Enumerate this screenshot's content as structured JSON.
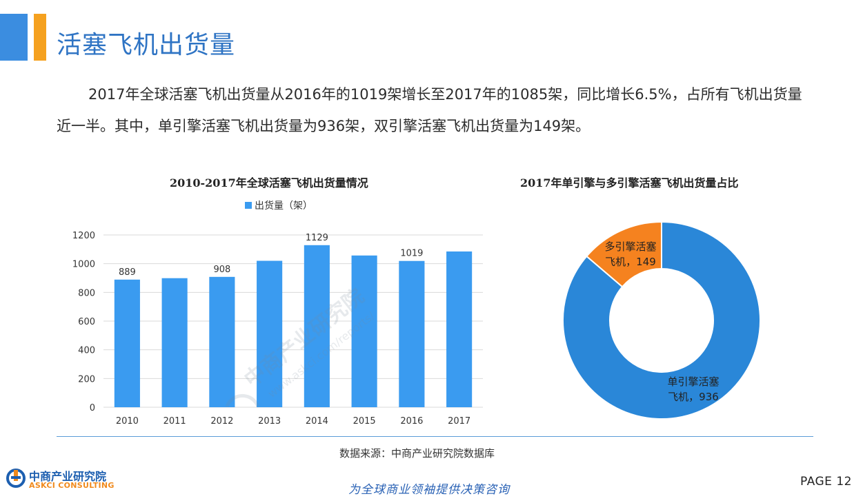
{
  "page_title": "活塞飞机出货量",
  "intro_text": "2017年全球活塞飞机出货量从2016年的1019架增长至2017年的1085架，同比增长6.5%，占所有飞机出货量近一半。其中，单引擎活塞飞机出货量为936架，双引擎活塞飞机出货量为149架。",
  "colors": {
    "accent_blue": "#3b8de0",
    "accent_orange": "#f5a11f",
    "bar": "#3a9bf0",
    "donut_single": "#2a87d8",
    "donut_multi": "#f5821f"
  },
  "chart_data": [
    {
      "type": "bar",
      "title": "2010-2017年全球活塞飞机出货量情况",
      "categories": [
        "2010",
        "2011",
        "2012",
        "2013",
        "2014",
        "2015",
        "2016",
        "2017"
      ],
      "series": [
        {
          "name": "出货量（架）",
          "values": [
            889,
            899,
            908,
            1020,
            1129,
            1057,
            1019,
            1085
          ]
        }
      ],
      "data_labels": [
        "889",
        "",
        "908",
        "",
        "1129",
        "",
        "1019",
        ""
      ],
      "ylim": [
        0,
        1200
      ],
      "yticks": [
        "0",
        "200",
        "400",
        "600",
        "800",
        "1000",
        "1200"
      ],
      "grid": true,
      "legend": "top"
    },
    {
      "type": "pie",
      "title": "2017年单引擎与多引擎活塞飞机出货量占比",
      "slices": [
        {
          "name": "多引擎活塞飞机",
          "value": 149,
          "label_line1": "多引擎活塞",
          "label_line2": "飞机，149"
        },
        {
          "name": "单引擎活塞飞机",
          "value": 936,
          "label_line1": "单引擎活塞",
          "label_line2": "飞机，936"
        }
      ],
      "donut": true
    }
  ],
  "source_text": "数据来源：中商产业研究院数据库",
  "logo": {
    "cn": "中商产业研究院",
    "en": "ASKCI CONSULTING"
  },
  "watermark": {
    "line1": "中商产业研究院",
    "line2": "www.askci.com/reports/"
  },
  "slogan": "为全球商业领袖提供决策咨询",
  "page_number": "PAGE  12"
}
